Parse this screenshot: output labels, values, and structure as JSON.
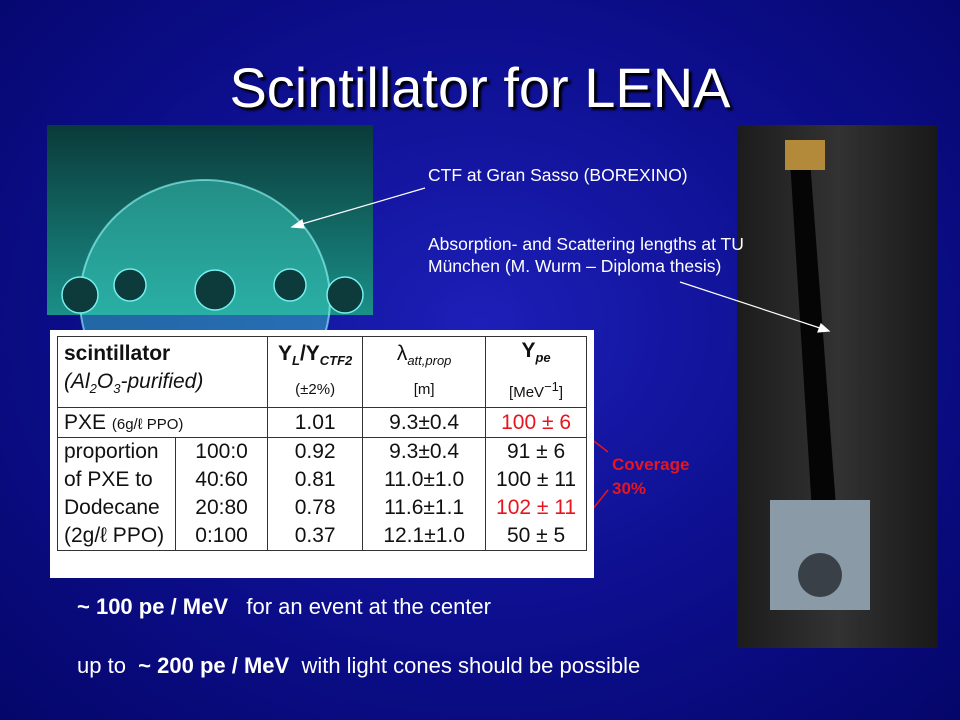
{
  "header": {
    "title": "Scintillator for LENA"
  },
  "captions": {
    "ctf": "CTF at Gran Sasso (BOREXINO)",
    "tum": "Absorption- and Scattering lengths at TU München (M. Wurm – Diploma thesis)",
    "coverage": [
      "Coverage",
      "30%"
    ]
  },
  "table": {
    "header": [
      {
        "line1": [
          "scintillator"
        ],
        "line2": [
          "(Al",
          "2",
          "O",
          "3",
          "-purified)"
        ]
      },
      {
        "line1": [
          "Y",
          "L",
          "/Y",
          "CTF2"
        ],
        "line2": [
          "(±2%)"
        ]
      },
      {
        "line1": [
          "λ",
          "att,prop"
        ],
        "line2": [
          "[m]"
        ]
      },
      {
        "line1": [
          "Y",
          "pe"
        ],
        "line2": [
          "[MeV",
          "−1",
          "]"
        ]
      }
    ],
    "pxe_row": {
      "label": [
        "PXE",
        "(6g/ℓ PPO)"
      ],
      "cells": [
        "1.01",
        "9.3±0.4",
        "100 ± 6"
      ]
    },
    "group": {
      "label": [
        "proportion",
        "of PXE to",
        "Dodecane",
        "(2g/ℓ PPO)"
      ],
      "rows": [
        [
          "100:0",
          "0.92",
          "9.3±0.4",
          "91 ± 6"
        ],
        [
          "40:60",
          "0.81",
          "11.0±1.0",
          "100 ± 11"
        ],
        [
          "20:80",
          "0.78",
          "11.6±1.1",
          "102 ± 11"
        ],
        [
          "0:100",
          "0.37",
          "12.1±1.0",
          "50 ± 5"
        ]
      ]
    }
  },
  "bottom": {
    "line1": [
      "~ 100 pe / MeV",
      "for an event at the center"
    ],
    "line2": [
      "up to",
      "~ 200 pe / MeV",
      "with light cones should be possible"
    ]
  }
}
